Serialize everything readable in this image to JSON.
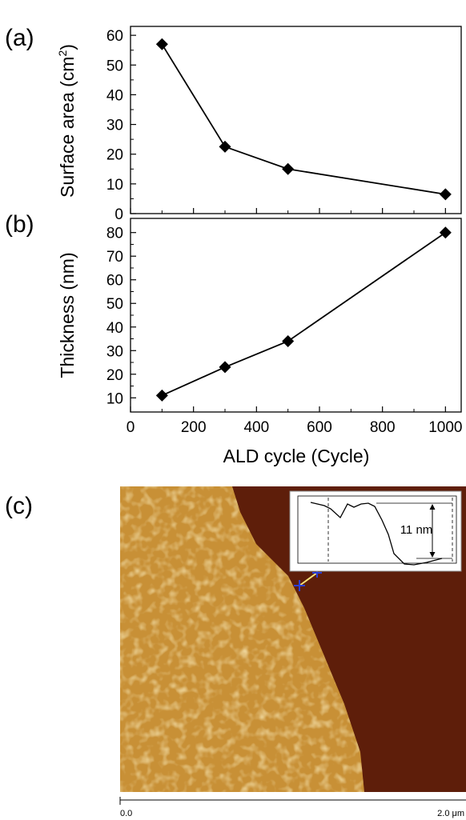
{
  "chart_data": [
    {
      "type": "line",
      "panel": "(a)",
      "ylabel_main": "Surface area (cm",
      "ylabel_sup": "2",
      "ylabel_close": ")",
      "xlim": [
        0,
        1050
      ],
      "ylim": [
        0,
        63
      ],
      "yticks": [
        0,
        10,
        20,
        30,
        40,
        50,
        60
      ],
      "x": [
        100,
        300,
        500,
        1000
      ],
      "y": [
        57,
        22.5,
        15,
        6.5
      ],
      "marker": "diamond",
      "color": "#000000"
    },
    {
      "type": "line",
      "panel": "(b)",
      "ylabel": "Thickness (nm)",
      "xlabel": "ALD cycle (Cycle)",
      "xlim": [
        0,
        1050
      ],
      "ylim": [
        4,
        86
      ],
      "xticks": [
        0,
        200,
        400,
        600,
        800,
        1000
      ],
      "yticks": [
        10,
        20,
        30,
        40,
        50,
        60,
        70,
        80
      ],
      "x": [
        100,
        300,
        500,
        1000
      ],
      "y": [
        11,
        23,
        34,
        80
      ],
      "marker": "diamond",
      "color": "#000000"
    }
  ],
  "afm_panel": {
    "label": "(c)",
    "scale_start": "0.0",
    "scale_end": "2.0 μm",
    "inset_step_label": "11 nm",
    "colors": {
      "substrate": "#5e1e0a",
      "film": "#c89036",
      "highlight": "#f2d88a"
    }
  }
}
